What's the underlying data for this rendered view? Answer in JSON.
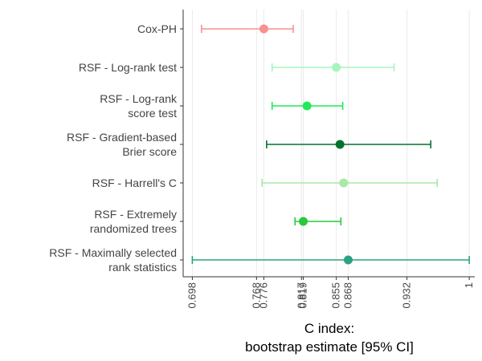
{
  "chart_data": {
    "type": "forest",
    "title": "",
    "xlabel_lines": [
      "C index:",
      "bootstrap estimate [95% CI]"
    ],
    "ylabel": "",
    "x_ticks": [
      "0.698",
      "0.768",
      "0.776",
      "0.817",
      "0.819",
      "0.855",
      "0.868",
      "0.932",
      "1"
    ],
    "x_tick_labels": [
      "0.698",
      "0.768",
      "0.776",
      "0.817",
      "0.819",
      "0.855",
      "0.868",
      "0.932",
      "1"
    ],
    "grid": "vertical",
    "models": [
      {
        "label_lines": [
          "Cox-PH"
        ],
        "estimate": 0.776,
        "lower": 0.708,
        "upper": 0.808,
        "color": "#F8918F"
      },
      {
        "label_lines": [
          "RSF - Log-rank test"
        ],
        "estimate": 0.855,
        "lower": 0.785,
        "upper": 0.918,
        "color": "#A6F5BE"
      },
      {
        "label_lines": [
          "RSF - Log-rank",
          "score test"
        ],
        "estimate": 0.823,
        "lower": 0.785,
        "upper": 0.862,
        "color": "#1FEA59"
      },
      {
        "label_lines": [
          "RSF - Gradient-based",
          "Brier score"
        ],
        "estimate": 0.859,
        "lower": 0.779,
        "upper": 0.958,
        "color": "#00732F"
      },
      {
        "label_lines": [
          "RSF - Harrell's C"
        ],
        "estimate": 0.863,
        "lower": 0.774,
        "upper": 0.965,
        "color": "#A8E8A8"
      },
      {
        "label_lines": [
          "RSF - Extremely",
          "randomized trees"
        ],
        "estimate": 0.819,
        "lower": 0.81,
        "upper": 0.86,
        "color": "#28C93C"
      },
      {
        "label_lines": [
          "RSF - Maximally selected",
          "rank statistics"
        ],
        "estimate": 0.868,
        "lower": 0.698,
        "upper": 1.0,
        "color": "#2AA382"
      }
    ]
  }
}
